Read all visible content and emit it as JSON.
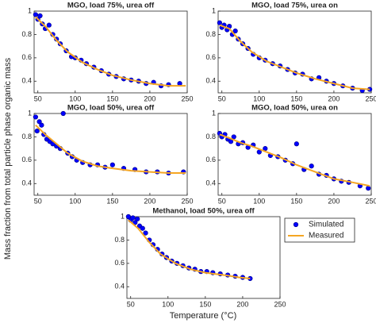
{
  "ylabel": "Mass fraction from total particle phase organic mass",
  "xlabel": "Temperature (°C)",
  "chart_data": [
    {
      "type": "scatter",
      "title": "MGO, load 75%, urea off",
      "xlim": [
        45,
        250
      ],
      "ylim": [
        0.3,
        1
      ],
      "xticks": [
        50,
        100,
        150,
        200,
        250
      ],
      "yticks": [
        0.4,
        0.6,
        0.8,
        1
      ],
      "series": [
        {
          "color": "#0000ff",
          "x": [
            47,
            50,
            53,
            56,
            60,
            65,
            70,
            75,
            80,
            88,
            95,
            100,
            108,
            115,
            125,
            135,
            145,
            155,
            165,
            175,
            185,
            195,
            205,
            215,
            225,
            240
          ],
          "values": [
            0.97,
            0.93,
            0.96,
            0.89,
            0.85,
            0.88,
            0.8,
            0.76,
            0.72,
            0.66,
            0.61,
            0.6,
            0.58,
            0.55,
            0.52,
            0.49,
            0.46,
            0.44,
            0.42,
            0.41,
            0.4,
            0.38,
            0.39,
            0.36,
            0.37,
            0.38
          ]
        },
        {
          "color": "#f5a623",
          "x": [
            47,
            60,
            75,
            90,
            110,
            130,
            150,
            175,
            200,
            225,
            248
          ],
          "values": [
            0.95,
            0.87,
            0.75,
            0.65,
            0.56,
            0.5,
            0.45,
            0.41,
            0.38,
            0.36,
            0.36
          ]
        }
      ]
    },
    {
      "type": "scatter",
      "title": "MGO, load 75%, urea on",
      "xlim": [
        45,
        250
      ],
      "ylim": [
        0.3,
        1
      ],
      "xticks": [
        50,
        100,
        150,
        200,
        250
      ],
      "yticks": [
        0.4,
        0.6,
        0.8,
        1
      ],
      "series": [
        {
          "color": "#0000ff",
          "x": [
            47,
            50,
            53,
            57,
            60,
            64,
            68,
            72,
            78,
            85,
            92,
            100,
            108,
            118,
            128,
            138,
            148,
            158,
            170,
            180,
            190,
            200,
            212,
            225,
            238,
            248
          ],
          "values": [
            0.9,
            0.86,
            0.88,
            0.84,
            0.87,
            0.8,
            0.83,
            0.76,
            0.72,
            0.68,
            0.63,
            0.6,
            0.58,
            0.55,
            0.53,
            0.5,
            0.47,
            0.46,
            0.42,
            0.43,
            0.4,
            0.38,
            0.36,
            0.34,
            0.32,
            0.33
          ]
        },
        {
          "color": "#f5a623",
          "x": [
            47,
            60,
            75,
            90,
            110,
            130,
            150,
            175,
            200,
            225,
            248
          ],
          "values": [
            0.88,
            0.85,
            0.74,
            0.65,
            0.57,
            0.52,
            0.47,
            0.42,
            0.38,
            0.34,
            0.33
          ]
        }
      ]
    },
    {
      "type": "scatter",
      "title": "MGO, load 50%, urea off",
      "xlim": [
        45,
        250
      ],
      "ylim": [
        0.3,
        1
      ],
      "xticks": [
        50,
        100,
        150,
        200,
        250
      ],
      "yticks": [
        0.4,
        0.6,
        0.8,
        1
      ],
      "series": [
        {
          "color": "#0000ff",
          "x": [
            47,
            49,
            52,
            55,
            58,
            62,
            66,
            70,
            75,
            80,
            84,
            90,
            96,
            102,
            110,
            120,
            130,
            140,
            150,
            165,
            180,
            195,
            210,
            225,
            245
          ],
          "values": [
            0.97,
            0.85,
            0.93,
            0.9,
            0.82,
            0.78,
            0.76,
            0.74,
            0.72,
            0.7,
            1.0,
            0.66,
            0.63,
            0.6,
            0.58,
            0.56,
            0.56,
            0.54,
            0.56,
            0.53,
            0.52,
            0.5,
            0.5,
            0.49,
            0.5
          ]
        },
        {
          "color": "#f5a623",
          "x": [
            47,
            60,
            75,
            90,
            110,
            130,
            150,
            175,
            200,
            225,
            248
          ],
          "values": [
            0.9,
            0.82,
            0.74,
            0.66,
            0.59,
            0.55,
            0.53,
            0.51,
            0.5,
            0.49,
            0.49
          ]
        }
      ]
    },
    {
      "type": "scatter",
      "title": "MGO, load 50%, urea on",
      "xlim": [
        45,
        250
      ],
      "ylim": [
        0.3,
        1
      ],
      "xticks": [
        50,
        100,
        150,
        200,
        250
      ],
      "yticks": [
        0.4,
        0.6,
        0.8,
        1
      ],
      "series": [
        {
          "color": "#0000ff",
          "x": [
            47,
            50,
            54,
            58,
            62,
            66,
            72,
            78,
            85,
            92,
            100,
            108,
            115,
            125,
            135,
            145,
            150,
            160,
            170,
            180,
            190,
            200,
            210,
            220,
            235,
            246
          ],
          "values": [
            0.83,
            0.8,
            0.82,
            0.78,
            0.76,
            0.8,
            0.74,
            0.75,
            0.71,
            0.73,
            0.67,
            0.7,
            0.64,
            0.63,
            0.6,
            0.57,
            0.74,
            0.52,
            0.55,
            0.48,
            0.47,
            0.44,
            0.42,
            0.41,
            0.38,
            0.36
          ]
        },
        {
          "color": "#f5a623",
          "x": [
            47,
            60,
            75,
            90,
            110,
            130,
            150,
            175,
            200,
            225,
            248
          ],
          "values": [
            0.82,
            0.79,
            0.75,
            0.72,
            0.67,
            0.62,
            0.56,
            0.5,
            0.44,
            0.41,
            0.38
          ]
        }
      ]
    },
    {
      "type": "scatter",
      "title": "Methanol, load 50%, urea off",
      "xlim": [
        45,
        250
      ],
      "ylim": [
        0.3,
        1
      ],
      "xticks": [
        50,
        100,
        150,
        200,
        250
      ],
      "yticks": [
        0.4,
        0.6,
        0.8,
        1
      ],
      "legend": "outside-right",
      "series": [
        {
          "name": "Simulated",
          "color": "#0000ff",
          "x": [
            47,
            50,
            53,
            56,
            59,
            62,
            66,
            70,
            75,
            80,
            86,
            92,
            98,
            105,
            112,
            120,
            128,
            136,
            144,
            152,
            160,
            170,
            180,
            190,
            200,
            210
          ],
          "values": [
            1.0,
            0.97,
            0.99,
            0.95,
            0.98,
            0.92,
            0.9,
            0.86,
            0.8,
            0.76,
            0.72,
            0.68,
            0.65,
            0.62,
            0.6,
            0.58,
            0.56,
            0.55,
            0.53,
            0.53,
            0.52,
            0.51,
            0.5,
            0.49,
            0.48,
            0.47
          ]
        },
        {
          "name": "Measured",
          "color": "#f5a623",
          "x": [
            47,
            60,
            75,
            90,
            110,
            130,
            150,
            175,
            195,
            210
          ],
          "values": [
            0.97,
            0.9,
            0.78,
            0.68,
            0.6,
            0.55,
            0.52,
            0.5,
            0.48,
            0.47
          ]
        }
      ]
    }
  ]
}
